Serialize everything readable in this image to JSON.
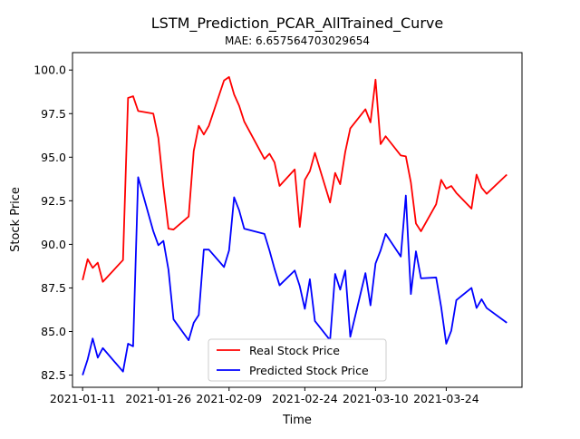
{
  "chart_data": {
    "type": "line",
    "title": "LSTM_Prediction_PCAR_AllTrained_Curve",
    "subtitle": "MAE: 6.657564703029654",
    "xlabel": "Time",
    "ylabel": "Stock Price",
    "ylim": [
      81.8,
      101.0
    ],
    "xlim": [
      "2021-01-09",
      "2021-04-08"
    ],
    "x_tick_labels": [
      "2021-01-11",
      "2021-01-26",
      "2021-02-09",
      "2021-02-24",
      "2021-03-10",
      "2021-03-24"
    ],
    "y_ticks": [
      82.5,
      85.0,
      87.5,
      90.0,
      92.5,
      95.0,
      97.5,
      100.0
    ],
    "grid": false,
    "legend_position": "lower center",
    "x": [
      "2021-01-11",
      "2021-01-12",
      "2021-01-13",
      "2021-01-14",
      "2021-01-15",
      "2021-01-19",
      "2021-01-20",
      "2021-01-21",
      "2021-01-22",
      "2021-01-25",
      "2021-01-26",
      "2021-01-27",
      "2021-01-28",
      "2021-01-29",
      "2021-02-01",
      "2021-02-02",
      "2021-02-03",
      "2021-02-04",
      "2021-02-05",
      "2021-02-08",
      "2021-02-09",
      "2021-02-10",
      "2021-02-11",
      "2021-02-12",
      "2021-02-16",
      "2021-02-17",
      "2021-02-18",
      "2021-02-19",
      "2021-02-22",
      "2021-02-23",
      "2021-02-24",
      "2021-02-25",
      "2021-02-26",
      "2021-03-01",
      "2021-03-02",
      "2021-03-03",
      "2021-03-04",
      "2021-03-05",
      "2021-03-08",
      "2021-03-09",
      "2021-03-10",
      "2021-03-11",
      "2021-03-12",
      "2021-03-15",
      "2021-03-16",
      "2021-03-17",
      "2021-03-18",
      "2021-03-19",
      "2021-03-22",
      "2021-03-23",
      "2021-03-24",
      "2021-03-25",
      "2021-03-26",
      "2021-03-29",
      "2021-03-30",
      "2021-03-31",
      "2021-04-01",
      "2021-04-05"
    ],
    "series": [
      {
        "name": "Real Stock Price",
        "color": "#ff0000",
        "values": [
          87.95,
          89.15,
          88.65,
          88.95,
          87.85,
          89.1,
          98.4,
          98.5,
          97.65,
          97.5,
          96.1,
          93.3,
          90.9,
          90.85,
          91.6,
          95.35,
          96.8,
          96.3,
          96.8,
          99.4,
          99.6,
          98.6,
          97.95,
          97.05,
          94.9,
          95.2,
          94.7,
          93.35,
          94.3,
          91.0,
          93.7,
          94.2,
          95.25,
          92.4,
          94.1,
          93.45,
          95.3,
          96.65,
          97.75,
          97.0,
          99.45,
          95.75,
          96.2,
          95.1,
          95.05,
          93.55,
          91.2,
          90.75,
          92.3,
          93.7,
          93.2,
          93.35,
          92.95,
          92.05,
          94.0,
          93.25,
          92.9,
          94.0
        ]
      },
      {
        "name": "Predicted Stock Price",
        "color": "#0000ff",
        "values": [
          82.5,
          83.4,
          84.6,
          83.5,
          84.05,
          82.7,
          84.3,
          84.15,
          93.85,
          90.75,
          89.95,
          90.2,
          88.55,
          85.7,
          84.5,
          85.5,
          85.95,
          89.7,
          89.7,
          88.7,
          89.65,
          92.7,
          91.95,
          90.9,
          90.6,
          89.65,
          88.6,
          87.65,
          88.5,
          87.6,
          86.3,
          88.0,
          85.6,
          84.5,
          88.3,
          87.4,
          88.5,
          84.7,
          88.35,
          86.5,
          88.9,
          89.65,
          90.6,
          89.3,
          92.8,
          87.15,
          89.6,
          88.05,
          88.1,
          86.4,
          84.3,
          85.05,
          86.8,
          87.5,
          86.35,
          86.85,
          86.35,
          85.5
        ]
      }
    ]
  }
}
